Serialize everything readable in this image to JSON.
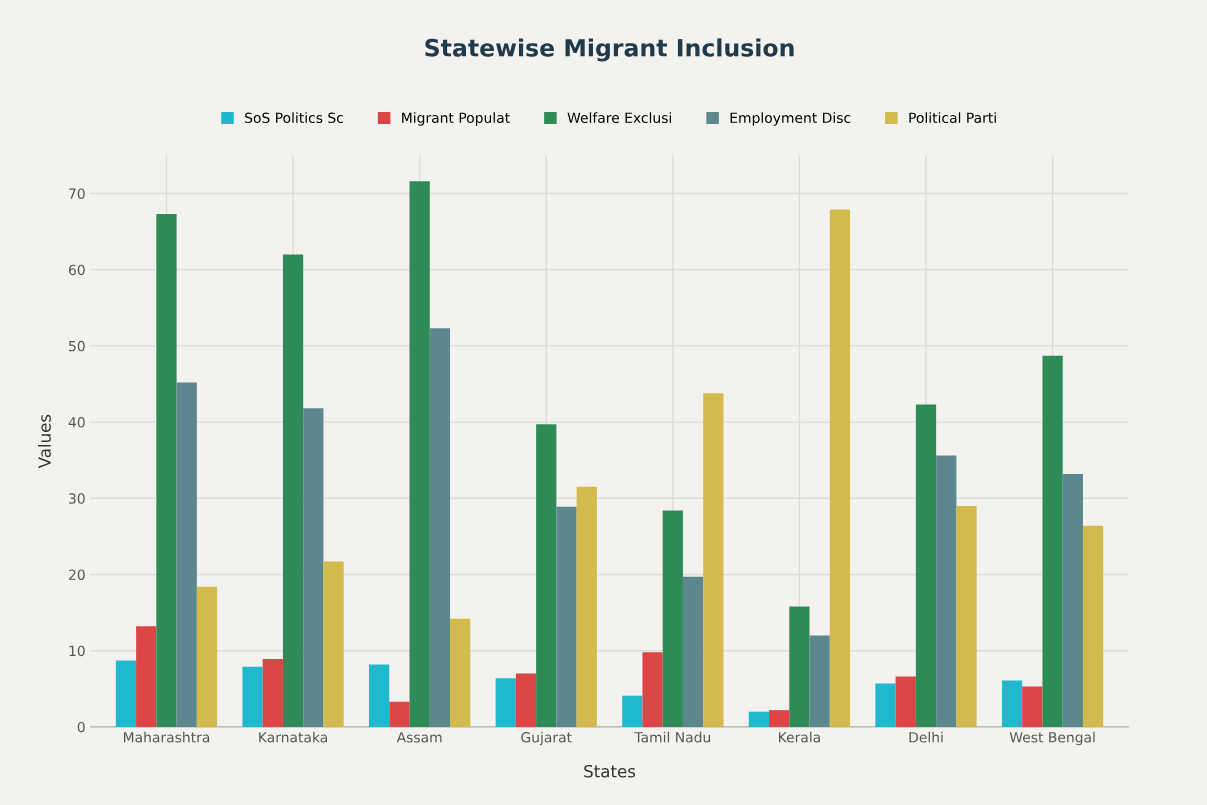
{
  "chart_data": {
    "type": "bar",
    "title": "Statewise Migrant Inclusion",
    "xlabel": "States",
    "ylabel": "Values",
    "categories": [
      "Maharashtra",
      "Karnataka",
      "Assam",
      "Gujarat",
      "Tamil Nadu",
      "Kerala",
      "Delhi",
      "West Bengal"
    ],
    "series": [
      {
        "name": "SoS Politics Sc",
        "color": "#1fb8cd",
        "values": [
          8.7,
          7.9,
          8.2,
          6.4,
          4.1,
          2.0,
          5.7,
          6.1
        ]
      },
      {
        "name": "Migrant Populat",
        "color": "#db4545",
        "values": [
          13.2,
          8.9,
          3.3,
          7.0,
          9.8,
          2.2,
          6.6,
          5.3
        ]
      },
      {
        "name": "Welfare Exclusi",
        "color": "#2e8b57",
        "values": [
          67.3,
          62.0,
          71.6,
          39.7,
          28.4,
          15.8,
          42.3,
          48.7
        ]
      },
      {
        "name": "Employment Disc",
        "color": "#5d878f",
        "values": [
          45.2,
          41.8,
          52.3,
          28.9,
          19.7,
          12.0,
          35.6,
          33.2
        ]
      },
      {
        "name": "Political Parti",
        "color": "#d2ba4c",
        "values": [
          18.4,
          21.7,
          14.2,
          31.5,
          43.8,
          67.9,
          29.0,
          26.4
        ]
      }
    ],
    "ylim": [
      0,
      75
    ],
    "yticks": [
      0,
      10,
      20,
      30,
      40,
      50,
      60,
      70
    ],
    "grid": true,
    "legend": "top"
  }
}
